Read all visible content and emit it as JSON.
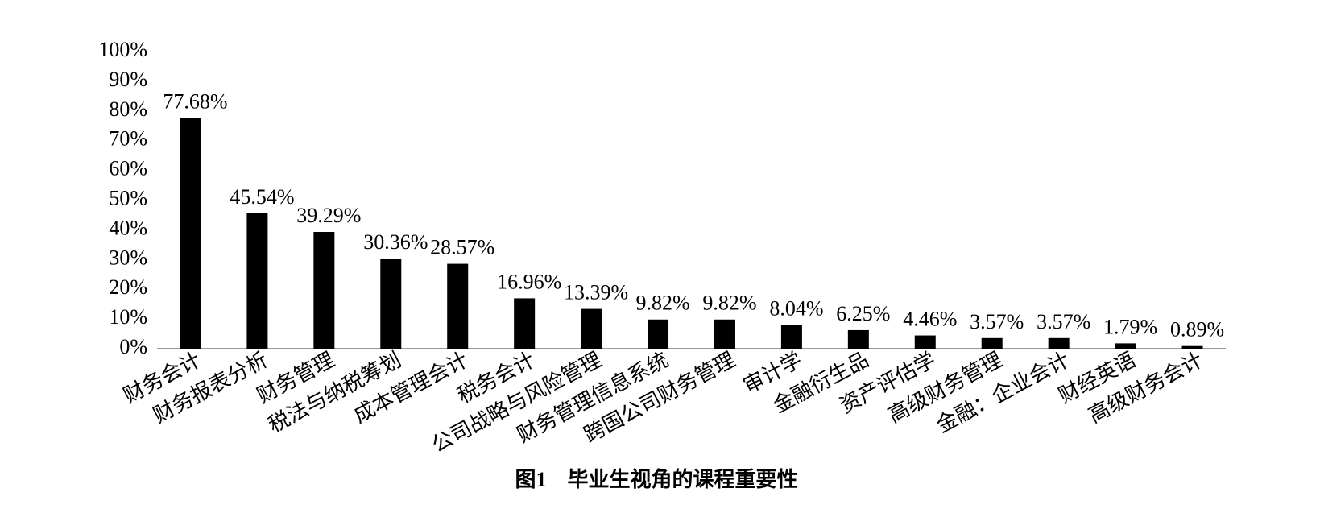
{
  "chart_data": {
    "type": "bar",
    "title": "图1　毕业生视角的课程重要性",
    "categories": [
      "财务会计",
      "财务报表分析",
      "财务管理",
      "税法与纳税筹划",
      "成本管理会计",
      "税务会计",
      "公司战略与风险管理",
      "财务管理信息系统",
      "跨国公司财务管理",
      "审计学",
      "金融衍生品",
      "资产评估学",
      "高级财务管理",
      "金融：企业会计",
      "财经英语",
      "高级财务会计"
    ],
    "values": [
      77.68,
      45.54,
      39.29,
      30.36,
      28.57,
      16.96,
      13.39,
      9.82,
      9.82,
      8.04,
      6.25,
      4.46,
      3.57,
      3.57,
      1.79,
      0.89
    ],
    "value_labels": [
      "77.68%",
      "45.54%",
      "39.29%",
      "30.36%",
      "28.57%",
      "16.96%",
      "13.39%",
      "9.82%",
      "9.82%",
      "8.04%",
      "6.25%",
      "4.46%",
      "3.57%",
      "3.57%",
      "1.79%",
      "0.89%"
    ],
    "color": "#000000",
    "ylim": [
      0,
      100
    ],
    "yticks": [
      {
        "value": 0,
        "label": "0%"
      },
      {
        "value": 10,
        "label": "10%"
      },
      {
        "value": 20,
        "label": "20%"
      },
      {
        "value": 30,
        "label": "30%"
      },
      {
        "value": 40,
        "label": "40%"
      },
      {
        "value": 50,
        "label": "50%"
      },
      {
        "value": 60,
        "label": "60%"
      },
      {
        "value": 70,
        "label": "70%"
      },
      {
        "value": 80,
        "label": "80%"
      },
      {
        "value": 90,
        "label": "90%"
      },
      {
        "value": 100,
        "label": "100%"
      }
    ],
    "grid": false
  }
}
